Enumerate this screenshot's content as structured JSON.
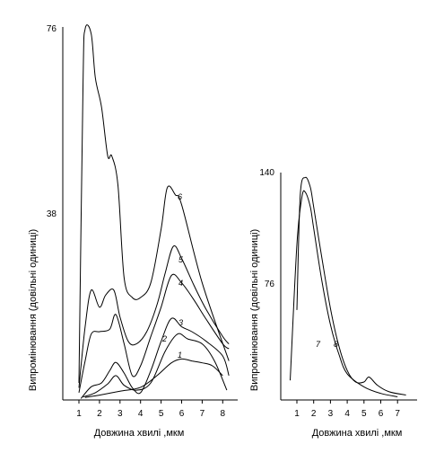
{
  "chart_data": [
    {
      "type": "line",
      "xlabel": "Довжина хвилі ,мкм",
      "ylabel": "Випромінювання (довільні одиниці)",
      "xticks": [
        1,
        2,
        3,
        4,
        5,
        6,
        7,
        8
      ],
      "yticks": [
        38,
        76
      ],
      "xlim": [
        0.8,
        8.5
      ],
      "ylim": [
        0,
        76
      ],
      "series": [
        {
          "name": "1",
          "x": [
            1.3,
            2.0,
            3.0,
            4.0,
            4.8,
            5.5,
            6.0,
            6.5,
            7.0,
            7.5,
            8.0
          ],
          "y": [
            0.5,
            1.0,
            1.8,
            2.6,
            5.0,
            7.6,
            8.4,
            8.0,
            7.6,
            7.0,
            5.0
          ]
        },
        {
          "name": "2",
          "x": [
            1.2,
            1.8,
            2.4,
            2.8,
            3.2,
            3.8,
            4.5,
            5.2,
            5.8,
            6.3,
            7.0,
            7.6,
            8.2
          ],
          "y": [
            0.6,
            1.5,
            3.3,
            5.0,
            3.0,
            2.0,
            3.5,
            10.0,
            13.5,
            12.5,
            11.5,
            8.0,
            2.0
          ]
        },
        {
          "name": "3",
          "x": [
            1.1,
            1.6,
            2.1,
            2.5,
            2.8,
            3.2,
            3.6,
            4.0,
            4.5,
            5.0,
            5.5,
            6.0,
            6.5,
            7.2,
            8.0,
            8.3
          ],
          "y": [
            0.3,
            2.7,
            3.5,
            6.0,
            7.7,
            5.5,
            2.5,
            1.5,
            6.0,
            12.0,
            16.7,
            15.0,
            14.0,
            12.0,
            9.0,
            5.0
          ]
        },
        {
          "name": "4",
          "x": [
            1.0,
            1.3,
            1.6,
            2.0,
            2.5,
            2.8,
            3.2,
            3.6,
            4.0,
            4.5,
            5.0,
            5.5,
            6.0,
            6.6,
            7.2,
            8.0,
            8.3
          ],
          "y": [
            1.5,
            8.0,
            13.5,
            14.0,
            14.5,
            17.5,
            11.5,
            5.0,
            7.0,
            13.0,
            19.0,
            25.5,
            24.0,
            20.5,
            16.5,
            11.5,
            10.5
          ]
        },
        {
          "name": "5",
          "x": [
            1.0,
            1.3,
            1.6,
            2.0,
            2.3,
            2.7,
            3.0,
            3.4,
            3.8,
            4.3,
            4.8,
            5.2,
            5.6,
            6.0,
            6.6,
            7.2,
            8.0,
            8.3
          ],
          "y": [
            2.5,
            15.0,
            22.5,
            19.0,
            21.5,
            22.5,
            17.0,
            12.0,
            11.5,
            14.0,
            19.5,
            26.0,
            31.5,
            29.0,
            23.5,
            18.5,
            13.0,
            11.5
          ]
        },
        {
          "name": "6",
          "x": [
            1.0,
            1.2,
            1.3,
            1.6,
            1.8,
            2.1,
            2.4,
            2.6,
            2.9,
            3.2,
            3.6,
            4.0,
            4.5,
            5.0,
            5.3,
            5.7,
            6.0,
            7.0,
            8.3
          ],
          "y": [
            3.5,
            65.0,
            76.0,
            75.0,
            66.0,
            60.0,
            50.0,
            50.0,
            44.0,
            25.0,
            21.0,
            21.0,
            24.0,
            35.0,
            43.5,
            42.0,
            40.0,
            24.0,
            8.0
          ]
        }
      ]
    },
    {
      "type": "line",
      "xlabel": "Довжина хвилі ,мкм",
      "ylabel": "Випромінювання (довільні одиниці)",
      "xticks": [
        1,
        2,
        3,
        4,
        5,
        6,
        7
      ],
      "yticks": [
        76,
        140
      ],
      "xlim": [
        0.5,
        7.8
      ],
      "ylim": [
        0,
        140
      ],
      "series": [
        {
          "name": "7",
          "x": [
            0.6,
            1.0,
            1.3,
            1.5,
            1.8,
            2.0,
            2.5,
            3.0,
            3.5,
            4.0,
            5.0,
            6.0,
            7.0
          ],
          "y": [
            12.0,
            95.0,
            124.0,
            127.0,
            118.0,
            105.0,
            72.0,
            46.0,
            28.0,
            16.0,
            8.0,
            4.0,
            2.0
          ]
        },
        {
          "name": "8",
          "x": [
            1.0,
            1.2,
            1.5,
            1.8,
            2.0,
            2.5,
            3.0,
            3.5,
            4.0,
            4.5,
            5.0,
            5.3,
            5.8,
            6.5,
            7.5
          ],
          "y": [
            55.0,
            125.0,
            136.0,
            130.0,
            118.0,
            86.0,
            56.0,
            33.0,
            18.0,
            11.0,
            11.0,
            14.0,
            9.0,
            5.0,
            3.0
          ]
        }
      ]
    }
  ]
}
